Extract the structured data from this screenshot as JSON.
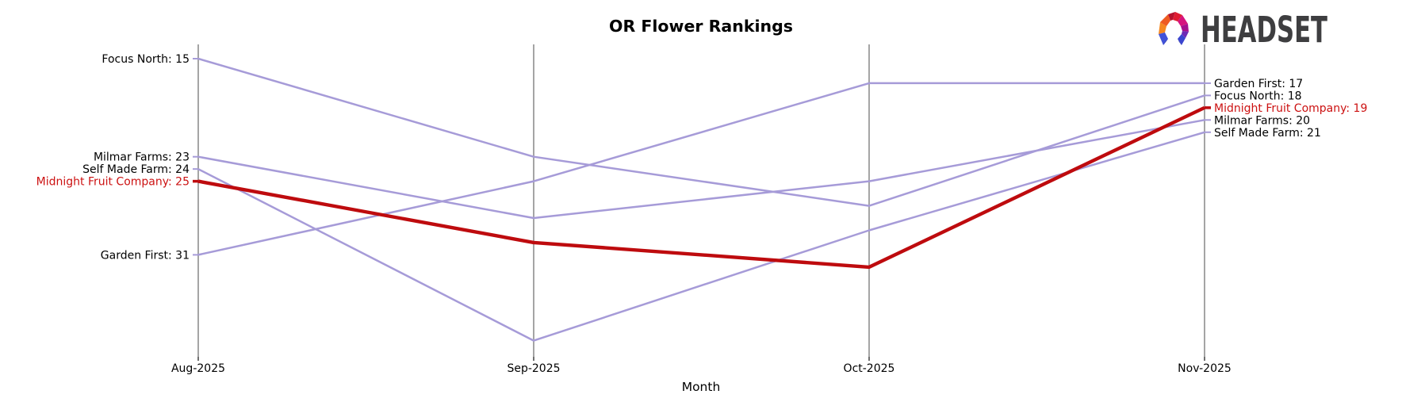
{
  "title": "OR Flower Rankings",
  "logo": {
    "brand_text": "HEADSET",
    "mark": "headset-faceted-horseshoe-logo"
  },
  "xlabel": "Month",
  "chart_data": {
    "type": "line",
    "subtype": "bump-ranking-chart",
    "categories": [
      "Aug-2025",
      "Sep-2025",
      "Oct-2025",
      "Nov-2025"
    ],
    "series": [
      {
        "name": "Focus North",
        "values": [
          15,
          23,
          27,
          18
        ],
        "highlight": false
      },
      {
        "name": "Milmar Farms",
        "values": [
          23,
          28,
          25,
          20
        ],
        "highlight": false
      },
      {
        "name": "Self Made Farm",
        "values": [
          24,
          38,
          29,
          21
        ],
        "highlight": false
      },
      {
        "name": "Garden First",
        "values": [
          31,
          25,
          17,
          17
        ],
        "highlight": false
      },
      {
        "name": "Midnight Fruit Company",
        "values": [
          25,
          30,
          32,
          19
        ],
        "highlight": true
      }
    ],
    "start_labels": [
      "Focus North: 15",
      "Milmar Farms: 23",
      "Self Made Farm: 24",
      "Midnight Fruit Company: 25",
      "Garden First: 31"
    ],
    "end_labels": [
      "Garden First: 17",
      "Focus North: 18",
      "Midnight Fruit Company: 19",
      "Milmar Farms: 20",
      "Self Made Farm: 21"
    ],
    "xlabel": "Month",
    "ylabel": "",
    "y_axis_note": "rank scale, lower number = better rank, axis not drawn",
    "grid": "vertical month spikes only",
    "legend": "inline start/end labels",
    "colors": {
      "line": "#a69bd8",
      "highlight_line": "#be0b0e",
      "highlight_label": "#cc1111",
      "label_text": "#000000",
      "axis_spike": "#a5a5a5",
      "tick": "#333333",
      "brand_text": "#3e3e40"
    }
  }
}
